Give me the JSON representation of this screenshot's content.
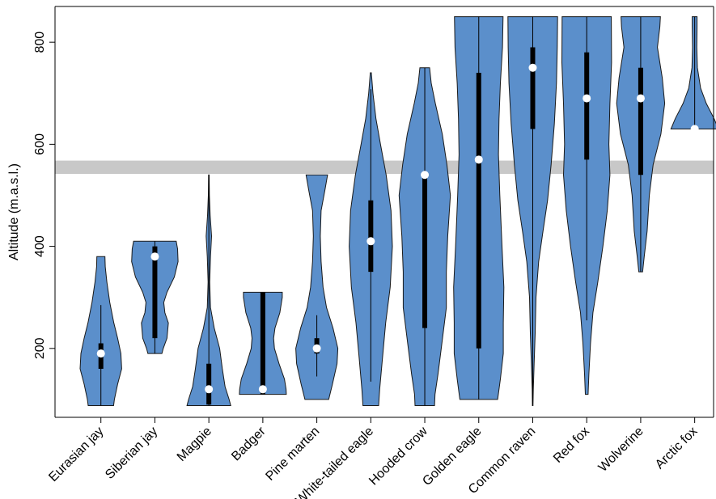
{
  "chart_data": {
    "type": "violin",
    "title": "",
    "xlabel": "",
    "ylabel": "Altitude (m.a.s.l.)",
    "ylim": [
      65,
      870
    ],
    "yticks": [
      200,
      400,
      600,
      800
    ],
    "grid": false,
    "legend": "none",
    "colors": {
      "violin_fill": "#5b8fcb",
      "violin_stroke": "#1a1a1a",
      "band": "#c8c8c8"
    },
    "reference_band": {
      "y_min": 542,
      "y_max": 568
    },
    "categories": [
      "Eurasian jay",
      "Siberian jay",
      "Magpie",
      "Badger",
      "Pine marten",
      "White-tailed eagle",
      "Hooded crow",
      "Golden eagle",
      "Common raven",
      "Red fox",
      "Wolverine",
      "Arctic fox"
    ],
    "series": [
      {
        "category": "Eurasian jay",
        "min": 88,
        "q1": 160,
        "median": 190,
        "q3": 210,
        "max": 380,
        "whisker_low": 88,
        "whisker_high": 285,
        "profile": [
          [
            88,
            0.47
          ],
          [
            100,
            0.5
          ],
          [
            130,
            0.62
          ],
          [
            160,
            0.77
          ],
          [
            190,
            0.74
          ],
          [
            220,
            0.62
          ],
          [
            250,
            0.48
          ],
          [
            290,
            0.33
          ],
          [
            330,
            0.22
          ],
          [
            360,
            0.16
          ],
          [
            380,
            0.15
          ]
        ]
      },
      {
        "category": "Siberian jay",
        "min": 190,
        "q1": 220,
        "median": 380,
        "q3": 400,
        "max": 410,
        "whisker_low": 190,
        "whisker_high": 410,
        "profile": [
          [
            190,
            0.26
          ],
          [
            200,
            0.31
          ],
          [
            220,
            0.45
          ],
          [
            250,
            0.5
          ],
          [
            270,
            0.37
          ],
          [
            290,
            0.33
          ],
          [
            310,
            0.45
          ],
          [
            340,
            0.72
          ],
          [
            370,
            0.86
          ],
          [
            395,
            0.84
          ],
          [
            410,
            0.79
          ]
        ]
      },
      {
        "category": "Magpie",
        "min": 88,
        "q1": 90,
        "median": 120,
        "q3": 170,
        "max": 540,
        "whisker_low": 88,
        "whisker_high": 540,
        "profile": [
          [
            88,
            0.81
          ],
          [
            100,
            0.75
          ],
          [
            125,
            0.6
          ],
          [
            160,
            0.5
          ],
          [
            200,
            0.4
          ],
          [
            240,
            0.2
          ],
          [
            280,
            0.06
          ],
          [
            330,
            0.03
          ],
          [
            380,
            0.06
          ],
          [
            420,
            0.1
          ],
          [
            460,
            0.05
          ],
          [
            500,
            0.02
          ],
          [
            540,
            0.01
          ]
        ]
      },
      {
        "category": "Badger",
        "min": 110,
        "q1": 110,
        "median": 120,
        "q3": 310,
        "max": 310,
        "whisker_low": 110,
        "whisker_high": 310,
        "profile": [
          [
            110,
            0.87
          ],
          [
            120,
            0.86
          ],
          [
            140,
            0.8
          ],
          [
            170,
            0.6
          ],
          [
            200,
            0.43
          ],
          [
            220,
            0.4
          ],
          [
            240,
            0.45
          ],
          [
            270,
            0.63
          ],
          [
            300,
            0.72
          ],
          [
            310,
            0.72
          ]
        ]
      },
      {
        "category": "Pine marten",
        "min": 100,
        "q1": 190,
        "median": 200,
        "q3": 220,
        "max": 540,
        "whisker_low": 145,
        "whisker_high": 265,
        "profile": [
          [
            100,
            0.44
          ],
          [
            130,
            0.58
          ],
          [
            170,
            0.75
          ],
          [
            200,
            0.78
          ],
          [
            240,
            0.6
          ],
          [
            280,
            0.36
          ],
          [
            320,
            0.23
          ],
          [
            370,
            0.16
          ],
          [
            420,
            0.13
          ],
          [
            470,
            0.16
          ],
          [
            510,
            0.3
          ],
          [
            540,
            0.4
          ]
        ]
      },
      {
        "category": "White-tailed eagle",
        "min": 88,
        "q1": 350,
        "median": 410,
        "q3": 490,
        "max": 740,
        "whisker_low": 135,
        "whisker_high": 708,
        "profile": [
          [
            88,
            0.29
          ],
          [
            120,
            0.33
          ],
          [
            180,
            0.43
          ],
          [
            250,
            0.55
          ],
          [
            320,
            0.72
          ],
          [
            400,
            0.8
          ],
          [
            470,
            0.75
          ],
          [
            540,
            0.57
          ],
          [
            600,
            0.36
          ],
          [
            650,
            0.19
          ],
          [
            700,
            0.08
          ],
          [
            740,
            0.02
          ]
        ]
      },
      {
        "category": "Hooded crow",
        "min": 88,
        "q1": 240,
        "median": 540,
        "q3": 540,
        "max": 750,
        "whisker_low": 88,
        "whisker_high": 750,
        "profile": [
          [
            88,
            0.36
          ],
          [
            110,
            0.38
          ],
          [
            150,
            0.49
          ],
          [
            200,
            0.61
          ],
          [
            280,
            0.8
          ],
          [
            350,
            0.8
          ],
          [
            420,
            0.85
          ],
          [
            500,
            0.95
          ],
          [
            560,
            0.82
          ],
          [
            620,
            0.65
          ],
          [
            680,
            0.39
          ],
          [
            720,
            0.24
          ],
          [
            750,
            0.18
          ]
        ]
      },
      {
        "category": "Golden eagle",
        "min": 100,
        "q1": 200,
        "median": 570,
        "q3": 740,
        "max": 850,
        "whisker_low": 100,
        "whisker_high": 850,
        "profile": [
          [
            100,
            0.7
          ],
          [
            140,
            0.8
          ],
          [
            190,
            0.91
          ],
          [
            250,
            0.91
          ],
          [
            320,
            0.93
          ],
          [
            400,
            0.86
          ],
          [
            500,
            0.78
          ],
          [
            580,
            0.73
          ],
          [
            650,
            0.75
          ],
          [
            720,
            0.8
          ],
          [
            790,
            0.88
          ],
          [
            850,
            0.9
          ]
        ]
      },
      {
        "category": "Common raven",
        "min": 88,
        "q1": 630,
        "median": 750,
        "q3": 790,
        "max": 850,
        "whisker_low": 88,
        "whisker_high": 850,
        "profile": [
          [
            88,
            0.01
          ],
          [
            120,
            0.02
          ],
          [
            170,
            0.05
          ],
          [
            230,
            0.09
          ],
          [
            300,
            0.12
          ],
          [
            370,
            0.22
          ],
          [
            430,
            0.38
          ],
          [
            490,
            0.55
          ],
          [
            560,
            0.68
          ],
          [
            640,
            0.8
          ],
          [
            720,
            0.88
          ],
          [
            790,
            0.91
          ],
          [
            850,
            0.92
          ]
        ]
      },
      {
        "category": "Red fox",
        "min": 110,
        "q1": 570,
        "median": 690,
        "q3": 780,
        "max": 850,
        "whisker_low": 255,
        "whisker_high": 850,
        "profile": [
          [
            110,
            0.05
          ],
          [
            150,
            0.08
          ],
          [
            210,
            0.14
          ],
          [
            270,
            0.23
          ],
          [
            330,
            0.41
          ],
          [
            400,
            0.6
          ],
          [
            470,
            0.76
          ],
          [
            540,
            0.86
          ],
          [
            600,
            0.82
          ],
          [
            680,
            0.86
          ],
          [
            760,
            0.92
          ],
          [
            850,
            0.91
          ]
        ]
      },
      {
        "category": "Wolverine",
        "min": 350,
        "q1": 540,
        "median": 690,
        "q3": 750,
        "max": 850,
        "whisker_low": 350,
        "whisker_high": 850,
        "profile": [
          [
            350,
            0.07
          ],
          [
            380,
            0.13
          ],
          [
            430,
            0.24
          ],
          [
            500,
            0.32
          ],
          [
            560,
            0.46
          ],
          [
            620,
            0.75
          ],
          [
            680,
            0.89
          ],
          [
            730,
            0.8
          ],
          [
            790,
            0.62
          ],
          [
            830,
            0.71
          ],
          [
            850,
            0.73
          ]
        ]
      },
      {
        "category": "Arctic fox",
        "min": 630,
        "q1": 630,
        "median": 630,
        "q3": 630,
        "max": 850,
        "whisker_low": 630,
        "whisker_high": 850,
        "profile": [
          [
            630,
            0.88
          ],
          [
            650,
            0.72
          ],
          [
            680,
            0.43
          ],
          [
            710,
            0.22
          ],
          [
            750,
            0.1
          ],
          [
            790,
            0.08
          ],
          [
            830,
            0.09
          ],
          [
            850,
            0.09
          ]
        ]
      }
    ]
  }
}
